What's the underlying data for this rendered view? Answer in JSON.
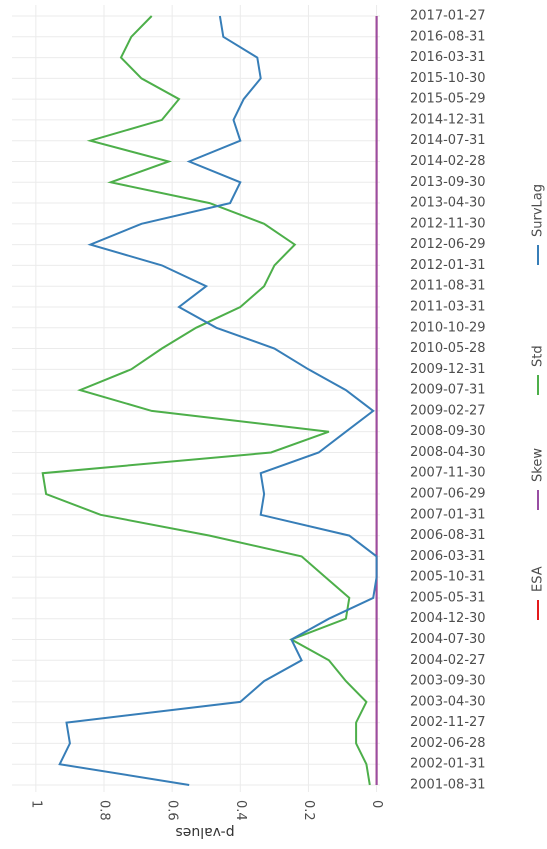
{
  "chart_data": {
    "type": "line",
    "orientation": "rotated",
    "y_label": "p-values",
    "categories": [
      "2001-08-31",
      "2002-01-31",
      "2002-06-28",
      "2002-11-27",
      "2003-04-30",
      "2003-09-30",
      "2004-02-27",
      "2004-07-30",
      "2004-12-30",
      "2005-05-31",
      "2005-10-31",
      "2006-03-31",
      "2006-08-31",
      "2007-01-31",
      "2007-06-29",
      "2007-11-30",
      "2008-04-30",
      "2008-09-30",
      "2009-02-27",
      "2009-07-31",
      "2009-12-31",
      "2010-05-28",
      "2010-10-29",
      "2011-03-31",
      "2011-08-31",
      "2012-01-31",
      "2012-06-29",
      "2012-11-30",
      "2013-04-30",
      "2013-09-30",
      "2014-02-28",
      "2014-07-31",
      "2014-12-31",
      "2015-05-29",
      "2015-10-30",
      "2016-03-31",
      "2016-08-31",
      "2017-01-27"
    ],
    "series": [
      {
        "name": "ESA",
        "color": "#e41a1c",
        "values": [
          0,
          0,
          0,
          0,
          0,
          0,
          0,
          0,
          0,
          0,
          0,
          0,
          0,
          0,
          0,
          0,
          0,
          0,
          0,
          0,
          0,
          0,
          0,
          0,
          0,
          0,
          0,
          0,
          0,
          0,
          0,
          0,
          0,
          0,
          0,
          0,
          0,
          0
        ]
      },
      {
        "name": "Skew",
        "color": "#984ea3",
        "values": [
          0,
          0,
          0,
          0,
          0,
          0,
          0,
          0,
          0,
          0,
          0,
          0,
          0,
          0,
          0,
          0,
          0,
          0,
          0,
          0,
          0,
          0,
          0,
          0,
          0,
          0,
          0,
          0,
          0,
          0,
          0,
          0,
          0,
          0,
          0,
          0,
          0,
          0
        ]
      },
      {
        "name": "Std",
        "color": "#4daf4a",
        "values": [
          0.02,
          0.03,
          0.06,
          0.06,
          0.03,
          0.09,
          0.14,
          0.25,
          0.09,
          0.08,
          0.15,
          0.22,
          0.49,
          0.81,
          0.97,
          0.98,
          0.31,
          0.14,
          0.66,
          0.87,
          0.72,
          0.63,
          0.53,
          0.4,
          0.33,
          0.3,
          0.24,
          0.33,
          0.49,
          0.78,
          0.61,
          0.84,
          0.63,
          0.58,
          0.69,
          0.75,
          0.72,
          0.66
        ]
      },
      {
        "name": "SurvLag",
        "color": "#377eb8",
        "values": [
          0.55,
          0.93,
          0.9,
          0.91,
          0.4,
          0.33,
          0.22,
          0.25,
          0.14,
          0.01,
          0,
          0,
          0.08,
          0.34,
          0.33,
          0.34,
          0.17,
          0.09,
          0.01,
          0.09,
          0.2,
          0.3,
          0.47,
          0.58,
          0.5,
          0.63,
          0.84,
          0.69,
          0.43,
          0.4,
          0.55,
          0.4,
          0.42,
          0.39,
          0.34,
          0.35,
          0.45,
          0.46
        ]
      }
    ],
    "ylim": [
      -0.01,
      1.07
    ],
    "yticks": [
      0,
      0.2,
      0.4,
      0.6,
      0.8,
      1
    ],
    "grid": true
  }
}
